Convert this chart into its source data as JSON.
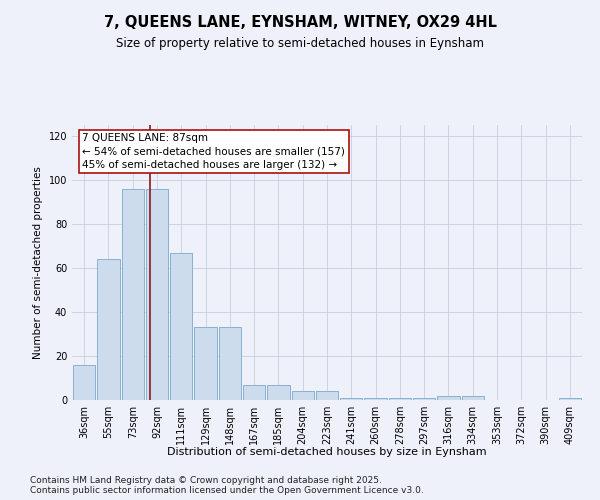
{
  "title1": "7, QUEENS LANE, EYNSHAM, WITNEY, OX29 4HL",
  "title2": "Size of property relative to semi-detached houses in Eynsham",
  "xlabel": "Distribution of semi-detached houses by size in Eynsham",
  "ylabel": "Number of semi-detached properties",
  "categories": [
    "36sqm",
    "55sqm",
    "73sqm",
    "92sqm",
    "111sqm",
    "129sqm",
    "148sqm",
    "167sqm",
    "185sqm",
    "204sqm",
    "223sqm",
    "241sqm",
    "260sqm",
    "278sqm",
    "297sqm",
    "316sqm",
    "334sqm",
    "353sqm",
    "372sqm",
    "390sqm",
    "409sqm"
  ],
  "values": [
    16,
    64,
    96,
    96,
    67,
    33,
    33,
    7,
    7,
    4,
    4,
    1,
    1,
    1,
    1,
    2,
    2,
    0,
    0,
    0,
    1
  ],
  "bar_color": "#cddcec",
  "bar_edge_color": "#7aaace",
  "vline_color": "#8b1a1a",
  "vline_x": 2.72,
  "annotation_title": "7 QUEENS LANE: 87sqm",
  "annotation_line1": "← 54% of semi-detached houses are smaller (157)",
  "annotation_line2": "45% of semi-detached houses are larger (132) →",
  "ylim": [
    0,
    125
  ],
  "yticks": [
    0,
    20,
    40,
    60,
    80,
    100,
    120
  ],
  "footer": "Contains HM Land Registry data © Crown copyright and database right 2025.\nContains public sector information licensed under the Open Government Licence v3.0.",
  "bg_color": "#eef1f9",
  "plot_bg_color": "#eef1f9",
  "grid_color": "#c0c8d8",
  "title1_fontsize": 10.5,
  "title2_fontsize": 8.5,
  "xlabel_fontsize": 8,
  "ylabel_fontsize": 7.5,
  "tick_fontsize": 7,
  "footer_fontsize": 6.5,
  "ann_fontsize": 7.5
}
